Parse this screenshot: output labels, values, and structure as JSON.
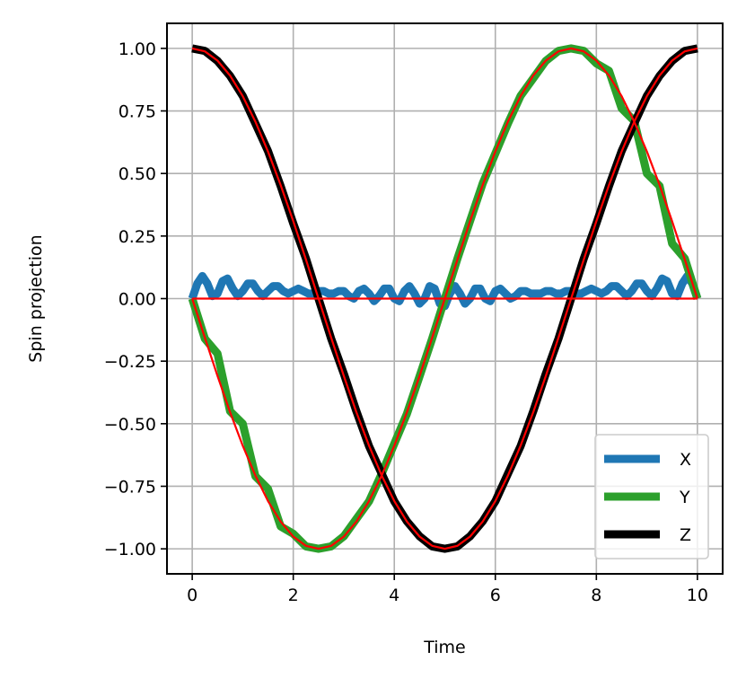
{
  "chart_data": {
    "type": "line",
    "xlabel": "Time",
    "ylabel": "Spin projection",
    "xlim": [
      -0.5,
      10.5
    ],
    "ylim": [
      -1.1,
      1.1
    ],
    "xticks": [
      0,
      2,
      4,
      6,
      8,
      10
    ],
    "xtick_labels": [
      "0",
      "2",
      "4",
      "6",
      "8",
      "10"
    ],
    "yticks": [
      1.0,
      0.75,
      0.5,
      0.25,
      0.0,
      -0.25,
      -0.5,
      -0.75,
      -1.0
    ],
    "ytick_labels": [
      "1.00",
      "0.75",
      "0.50",
      "0.25",
      "0.00",
      "−0.25",
      "−0.50",
      "−0.75",
      "−1.00"
    ],
    "grid": true,
    "legend_position": "lower-right",
    "series": [
      {
        "name": "X",
        "color": "#1f77b4",
        "x": [
          0,
          0.1,
          0.2,
          0.3,
          0.4,
          0.5,
          0.6,
          0.7,
          0.8,
          0.9,
          1.0,
          1.1,
          1.2,
          1.3,
          1.4,
          1.5,
          1.6,
          1.7,
          1.8,
          1.9,
          2.0,
          2.1,
          2.2,
          2.3,
          2.4,
          2.5,
          2.6,
          2.7,
          2.8,
          2.9,
          3.0,
          3.1,
          3.2,
          3.3,
          3.4,
          3.5,
          3.6,
          3.7,
          3.8,
          3.9,
          4.0,
          4.1,
          4.2,
          4.3,
          4.4,
          4.5,
          4.6,
          4.7,
          4.8,
          4.9,
          5.0,
          5.1,
          5.2,
          5.3,
          5.4,
          5.5,
          5.6,
          5.7,
          5.8,
          5.9,
          6.0,
          6.1,
          6.2,
          6.3,
          6.4,
          6.5,
          6.6,
          6.7,
          6.8,
          6.9,
          7.0,
          7.1,
          7.2,
          7.3,
          7.4,
          7.5,
          7.6,
          7.7,
          7.8,
          7.9,
          8.0,
          8.1,
          8.2,
          8.3,
          8.4,
          8.5,
          8.6,
          8.7,
          8.8,
          8.9,
          9.0,
          9.1,
          9.2,
          9.3,
          9.4,
          9.5,
          9.6,
          9.7,
          9.8,
          9.9,
          10.0
        ],
        "values": [
          0.0,
          0.06,
          0.09,
          0.06,
          0.01,
          0.02,
          0.07,
          0.08,
          0.04,
          0.01,
          0.03,
          0.06,
          0.06,
          0.03,
          0.01,
          0.03,
          0.05,
          0.05,
          0.03,
          0.02,
          0.03,
          0.04,
          0.03,
          0.02,
          0.02,
          0.03,
          0.03,
          0.02,
          0.02,
          0.03,
          0.03,
          0.01,
          0.0,
          0.03,
          0.04,
          0.02,
          -0.01,
          0.01,
          0.04,
          0.04,
          0.0,
          -0.01,
          0.03,
          0.05,
          0.02,
          -0.02,
          0.0,
          0.05,
          0.04,
          -0.02,
          -0.03,
          0.02,
          0.05,
          0.02,
          -0.02,
          0.0,
          0.04,
          0.04,
          0.0,
          -0.01,
          0.03,
          0.04,
          0.02,
          0.0,
          0.01,
          0.03,
          0.03,
          0.02,
          0.02,
          0.02,
          0.03,
          0.03,
          0.02,
          0.02,
          0.03,
          0.03,
          0.02,
          0.02,
          0.03,
          0.04,
          0.03,
          0.02,
          0.03,
          0.05,
          0.05,
          0.03,
          0.01,
          0.03,
          0.06,
          0.06,
          0.03,
          0.01,
          0.04,
          0.08,
          0.07,
          0.02,
          0.01,
          0.06,
          0.09,
          0.06,
          0.0
        ]
      },
      {
        "name": "Y",
        "color": "#2ca02c",
        "x": [
          0,
          0.25,
          0.5,
          0.75,
          1.0,
          1.25,
          1.5,
          1.75,
          2.0,
          2.25,
          2.5,
          2.75,
          3.0,
          3.25,
          3.5,
          3.75,
          4.0,
          4.25,
          4.5,
          4.75,
          5.0,
          5.25,
          5.5,
          5.75,
          6.0,
          6.25,
          6.5,
          6.75,
          7.0,
          7.25,
          7.5,
          7.75,
          8.0,
          8.25,
          8.5,
          8.75,
          9.0,
          9.25,
          9.5,
          9.75,
          10.0
        ],
        "values": [
          0.0,
          -0.16,
          -0.22,
          -0.45,
          -0.5,
          -0.71,
          -0.76,
          -0.91,
          -0.94,
          -0.99,
          -1.0,
          -0.99,
          -0.95,
          -0.88,
          -0.81,
          -0.7,
          -0.58,
          -0.46,
          -0.31,
          -0.16,
          0.0,
          0.16,
          0.31,
          0.46,
          0.58,
          0.7,
          0.81,
          0.88,
          0.95,
          0.99,
          1.0,
          0.99,
          0.94,
          0.91,
          0.76,
          0.71,
          0.5,
          0.45,
          0.22,
          0.16,
          0.0
        ]
      },
      {
        "name": "Z",
        "color": "#000000",
        "x": [
          0,
          0.25,
          0.5,
          0.75,
          1.0,
          1.25,
          1.5,
          1.75,
          2.0,
          2.25,
          2.5,
          2.75,
          3.0,
          3.25,
          3.5,
          3.75,
          4.0,
          4.25,
          4.5,
          4.75,
          5.0,
          5.25,
          5.5,
          5.75,
          6.0,
          6.25,
          6.5,
          6.75,
          7.0,
          7.25,
          7.5,
          7.75,
          8.0,
          8.25,
          8.5,
          8.75,
          9.0,
          9.25,
          9.5,
          9.75,
          10.0
        ],
        "values": [
          1.0,
          0.99,
          0.95,
          0.89,
          0.81,
          0.7,
          0.59,
          0.45,
          0.3,
          0.16,
          0.0,
          -0.16,
          -0.3,
          -0.45,
          -0.59,
          -0.7,
          -0.81,
          -0.89,
          -0.95,
          -0.99,
          -1.0,
          -0.99,
          -0.95,
          -0.89,
          -0.81,
          -0.7,
          -0.59,
          -0.45,
          -0.3,
          -0.16,
          0.0,
          0.16,
          0.3,
          0.45,
          0.59,
          0.7,
          0.81,
          0.89,
          0.95,
          0.99,
          1.0
        ]
      },
      {
        "name": "",
        "color": "#ff0000",
        "x": [
          0,
          0.25,
          0.5,
          0.75,
          1.0,
          1.25,
          1.5,
          1.75,
          2.0,
          2.25,
          2.5,
          2.75,
          3.0,
          3.25,
          3.5,
          3.75,
          4.0,
          4.25,
          4.5,
          4.75,
          5.0,
          5.25,
          5.5,
          5.75,
          6.0,
          6.25,
          6.5,
          6.75,
          7.0,
          7.25,
          7.5,
          7.75,
          8.0,
          8.25,
          8.5,
          8.75,
          9.0,
          9.25,
          9.5,
          9.75,
          10.0
        ],
        "values": [
          0.0,
          -0.156,
          -0.309,
          -0.454,
          -0.588,
          -0.707,
          -0.809,
          -0.891,
          -0.951,
          -0.988,
          -1.0,
          -0.988,
          -0.951,
          -0.891,
          -0.809,
          -0.707,
          -0.588,
          -0.454,
          -0.309,
          -0.156,
          0.0,
          0.156,
          0.309,
          0.454,
          0.588,
          0.707,
          0.809,
          0.891,
          0.951,
          0.988,
          1.0,
          0.988,
          0.951,
          0.891,
          0.809,
          0.707,
          0.588,
          0.454,
          0.309,
          0.156,
          0.0
        ]
      },
      {
        "name": "",
        "color": "#ff0000",
        "x": [
          0,
          0.25,
          0.5,
          0.75,
          1.0,
          1.25,
          1.5,
          1.75,
          2.0,
          2.25,
          2.5,
          2.75,
          3.0,
          3.25,
          3.5,
          3.75,
          4.0,
          4.25,
          4.5,
          4.75,
          5.0,
          5.25,
          5.5,
          5.75,
          6.0,
          6.25,
          6.5,
          6.75,
          7.0,
          7.25,
          7.5,
          7.75,
          8.0,
          8.25,
          8.5,
          8.75,
          9.0,
          9.25,
          9.5,
          9.75,
          10.0
        ],
        "values": [
          1.0,
          0.988,
          0.951,
          0.891,
          0.809,
          0.707,
          0.588,
          0.454,
          0.309,
          0.156,
          0.0,
          -0.156,
          -0.309,
          -0.454,
          -0.588,
          -0.707,
          -0.809,
          -0.891,
          -0.951,
          -0.988,
          -1.0,
          -0.988,
          -0.951,
          -0.891,
          -0.809,
          -0.707,
          -0.588,
          -0.454,
          -0.309,
          -0.156,
          0.0,
          0.156,
          0.309,
          0.454,
          0.588,
          0.707,
          0.809,
          0.891,
          0.951,
          0.988,
          1.0
        ]
      },
      {
        "name": "",
        "color": "#ff0000",
        "x": [
          0,
          10
        ],
        "values": [
          0,
          0
        ]
      }
    ],
    "legend": [
      {
        "label": "X",
        "color": "#1f77b4"
      },
      {
        "label": "Y",
        "color": "#2ca02c"
      },
      {
        "label": "Z",
        "color": "#000000"
      }
    ]
  }
}
